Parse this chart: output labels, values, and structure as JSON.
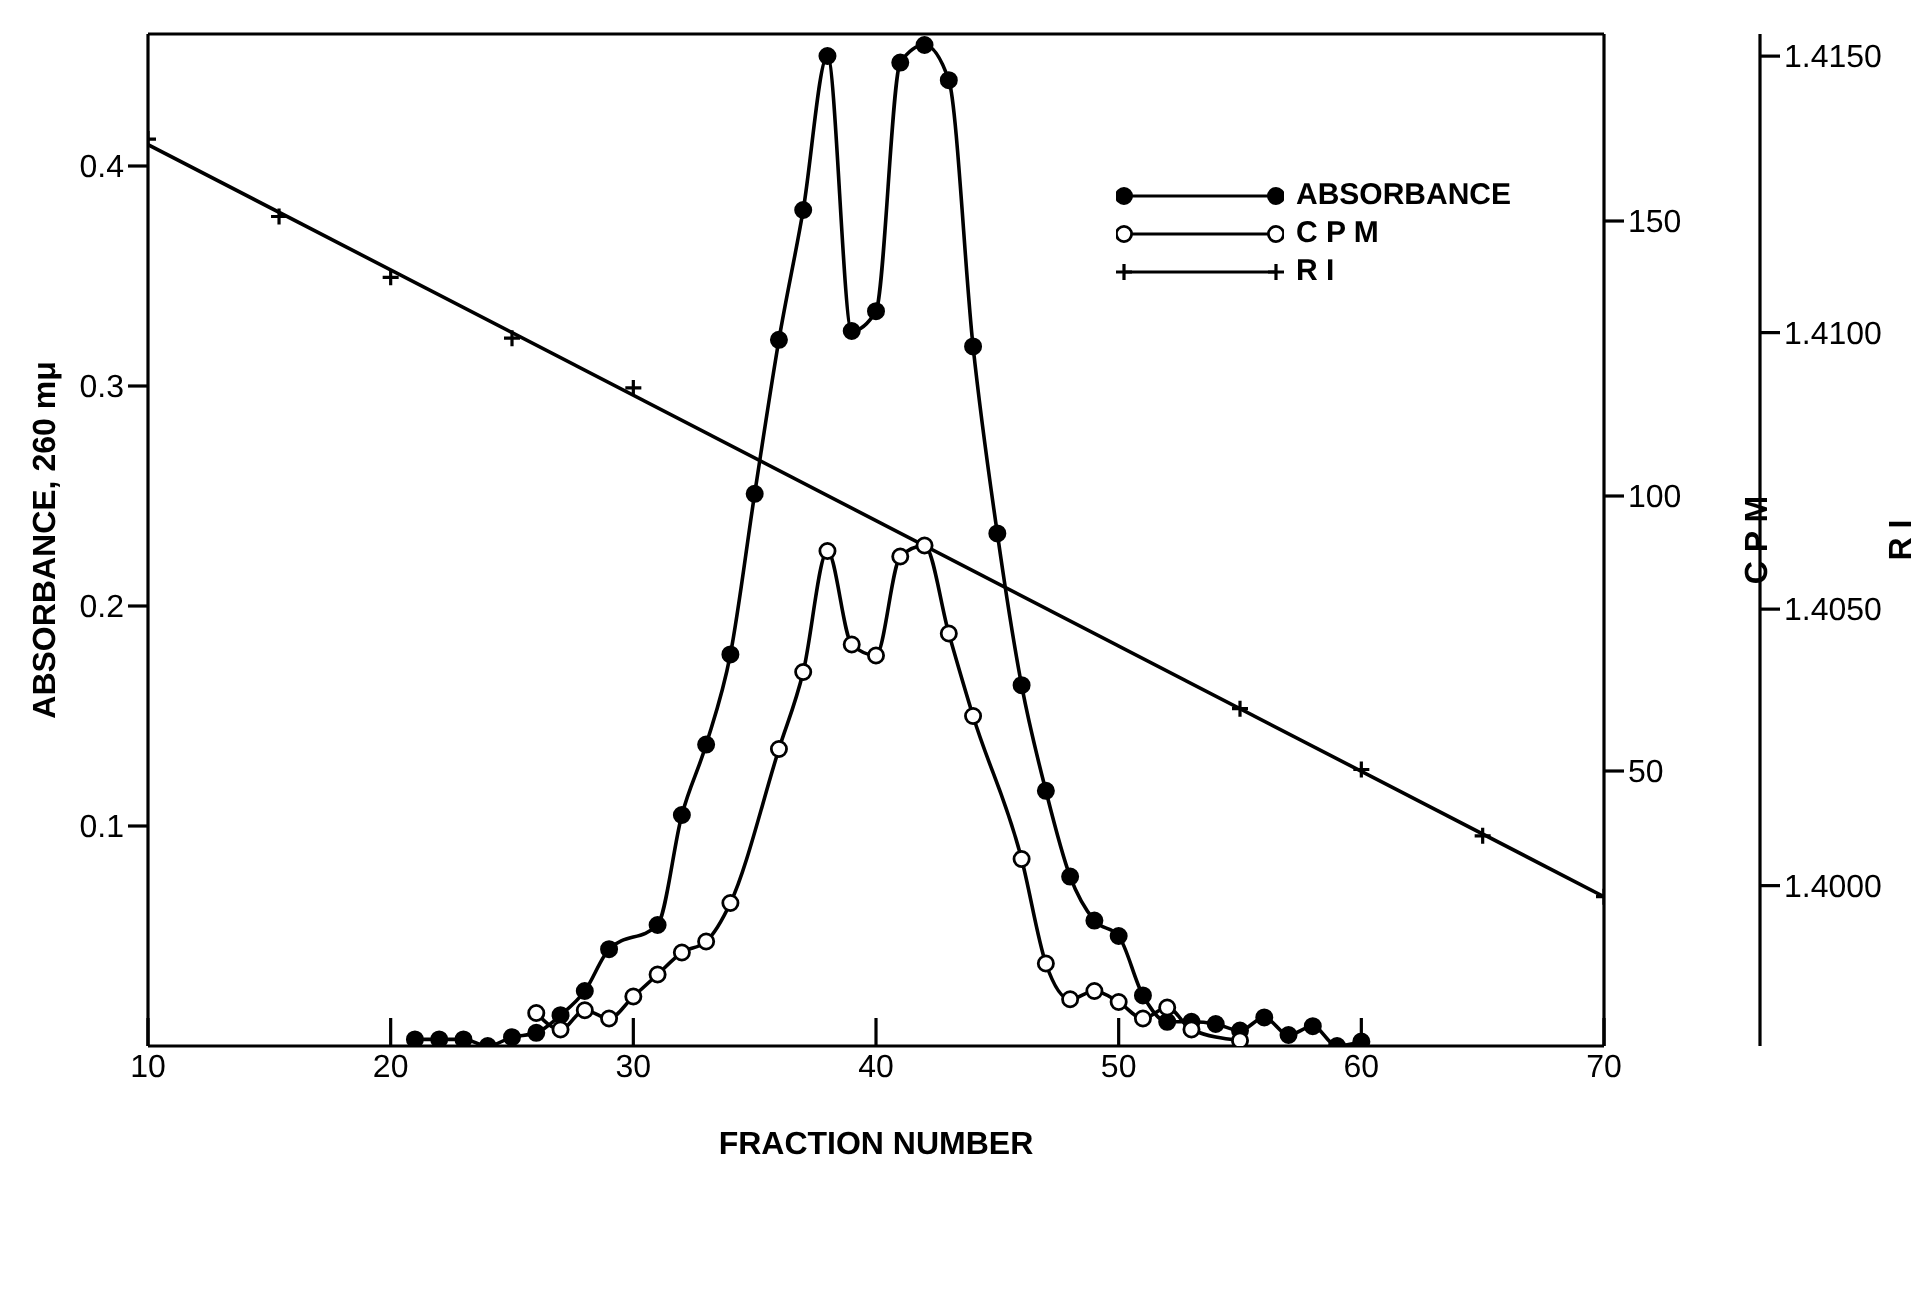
{
  "chart_data": {
    "type": "line",
    "xlabel": "FRACTION NUMBER",
    "ylabel": "ABSORBANCE, 260 mμ",
    "y2label": "C P M",
    "y3label": "R I",
    "xlim": [
      10,
      70
    ],
    "xticks": [
      10,
      20,
      30,
      40,
      50,
      60,
      70
    ],
    "ylim": [
      0,
      0.46
    ],
    "yticks": [
      0.1,
      0.2,
      0.3,
      0.4
    ],
    "y2lim": [
      0,
      184
    ],
    "y2ticks": [
      50,
      100,
      150
    ],
    "y3lim": [
      1.3971,
      1.4154
    ],
    "y3ticks": [
      {
        "value": 1.4,
        "label": "1.4000"
      },
      {
        "value": 1.405,
        "label": "1.4050"
      },
      {
        "value": 1.41,
        "label": "1.4100"
      },
      {
        "value": 1.415,
        "label": "1.4150"
      }
    ],
    "legend": "top right",
    "series": [
      {
        "name": "ABSORBANCE",
        "marker": "circle",
        "color": "#000000",
        "x": [
          21,
          22,
          23,
          24,
          25,
          26,
          27,
          28,
          29,
          31,
          32,
          33,
          34,
          35,
          36,
          37,
          38,
          39,
          40,
          41,
          42,
          43,
          44,
          45,
          46,
          47,
          48,
          49,
          50,
          51,
          52,
          53,
          54,
          55,
          56,
          57,
          58,
          59,
          60
        ],
        "values": [
          0.003,
          0.003,
          0.003,
          0.0,
          0.004,
          0.006,
          0.014,
          0.025,
          0.044,
          0.055,
          0.105,
          0.137,
          0.178,
          0.251,
          0.321,
          0.38,
          0.45,
          0.325,
          0.334,
          0.447,
          0.455,
          0.439,
          0.318,
          0.233,
          0.164,
          0.116,
          0.077,
          0.057,
          0.05,
          0.023,
          0.011,
          0.011,
          0.01,
          0.007,
          0.013,
          0.005,
          0.009,
          0.0,
          0.002
        ]
      },
      {
        "name": "C P M",
        "marker": "circle",
        "axis": "y2",
        "color": "#000000",
        "x": [
          26,
          27,
          28,
          29,
          30,
          31,
          32,
          33,
          34,
          36,
          37,
          38,
          39,
          40,
          41,
          42,
          43,
          44,
          46,
          47,
          48,
          49,
          50,
          51,
          52,
          53,
          55
        ],
        "values": [
          6,
          3,
          6.5,
          5,
          9,
          13,
          17,
          19,
          26,
          54,
          68,
          90,
          73,
          71,
          89,
          91,
          75,
          60,
          34,
          15,
          8.5,
          10,
          8,
          5,
          7,
          3,
          1
        ]
      },
      {
        "name": "R I",
        "type": "scatter",
        "marker": "cross",
        "axis": "y3",
        "color": "#000000",
        "x": [
          10,
          15.4,
          20,
          25,
          30,
          55,
          60,
          65,
          70
        ],
        "values": [
          1.4135,
          1.4121,
          1.411,
          1.4099,
          1.409,
          1.4032,
          1.4021,
          1.4009,
          1.3998
        ]
      },
      {
        "marker": "none",
        "axis": "y3",
        "color": "#000000",
        "x": [
          10,
          70
        ],
        "values": [
          1.4134,
          1.3998
        ]
      }
    ]
  }
}
